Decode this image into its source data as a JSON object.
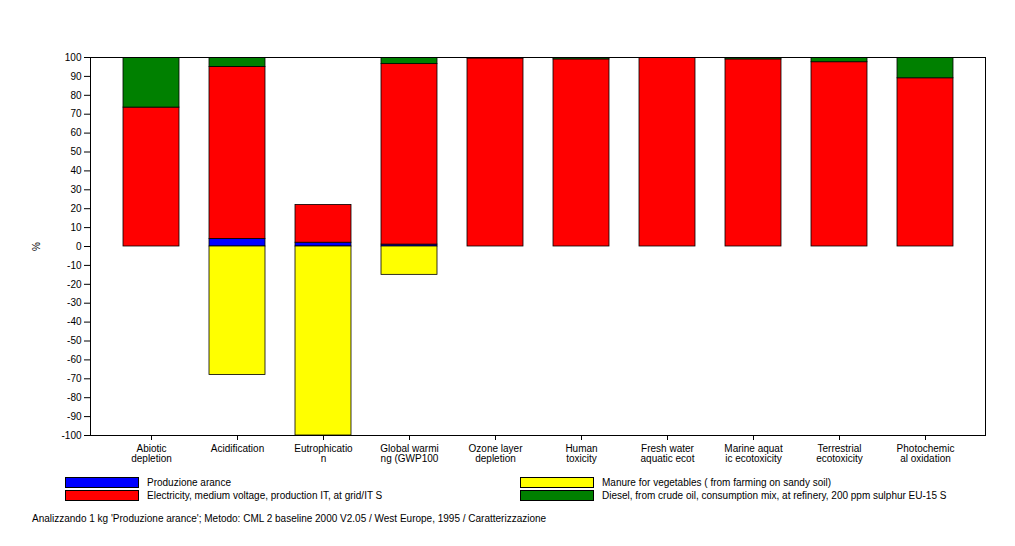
{
  "chart_data": {
    "type": "bar",
    "stacked": true,
    "grid": false,
    "legend": "bottom",
    "y_label": "%",
    "caption": "Analizzando 1 kg 'Produzione arance'; Metodo: CML 2 baseline 2000 V2.05 / West Europe, 1995 / Caratterizzazione",
    "categories": [
      "Abiotic\ndepletion",
      "Acidification",
      "Eutrophicatio\nn",
      "Global warmi\nng (GWP100",
      "Ozone layer\ndepletion",
      "Human\ntoxicity",
      "Fresh water\naquatic ecot",
      "Marine aquat\nic ecotoxicity",
      "Terrestrial\necotoxicity",
      "Photochemic\nal oxidation"
    ],
    "ylim": [
      -100,
      100
    ],
    "yticks": [
      -100,
      -90,
      -80,
      -70,
      -60,
      -50,
      -40,
      -30,
      -20,
      -10,
      0,
      10,
      20,
      30,
      40,
      50,
      60,
      70,
      80,
      90,
      100
    ],
    "series": [
      {
        "name": "Produzione arance",
        "color": "#0000ff",
        "values": [
          0,
          4,
          2,
          1,
          0,
          0,
          0,
          0,
          0,
          0
        ]
      },
      {
        "name": "Manure for vegetables ( from farming on sandy soil)",
        "color": "#ffff00",
        "values": [
          0,
          -68,
          -100,
          -15,
          0,
          0,
          0,
          0,
          0,
          0
        ]
      },
      {
        "name": "Electricity, medium voltage, production IT, at grid/IT S",
        "color": "#ff0000",
        "values": [
          73.5,
          91,
          20,
          95.5,
          99.5,
          99,
          99.8,
          99,
          97.5,
          89
        ]
      },
      {
        "name": "Diesel, from crude oil, consumption mix, at refinery, 200 ppm sulphur EU-15 S",
        "color": "#008000",
        "values": [
          26.5,
          5,
          0,
          3.5,
          0.5,
          1,
          0.2,
          1,
          2.5,
          11
        ]
      }
    ]
  }
}
